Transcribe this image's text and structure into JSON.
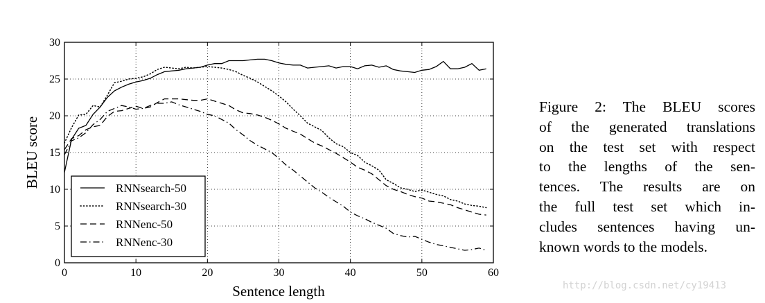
{
  "chart_data": {
    "type": "line",
    "xlabel": "Sentence length",
    "ylabel": "BLEU score",
    "xlim": [
      0,
      60
    ],
    "ylim": [
      0,
      30
    ],
    "xticks": [
      "0",
      "10",
      "20",
      "30",
      "40",
      "50",
      "60"
    ],
    "yticks": [
      "0",
      "5",
      "10",
      "15",
      "20",
      "25",
      "30"
    ],
    "grid": "dotted",
    "legend_position": "bottom-left",
    "series": [
      {
        "name": "RNNsearch-50",
        "style": "solid",
        "x": [
          0,
          1,
          2,
          3,
          4,
          5,
          6,
          7,
          8,
          9,
          10,
          11,
          12,
          13,
          14,
          15,
          16,
          17,
          18,
          19,
          20,
          21,
          22,
          23,
          24,
          25,
          26,
          27,
          28,
          29,
          30,
          31,
          32,
          33,
          34,
          35,
          36,
          37,
          38,
          39,
          40,
          41,
          42,
          43,
          44,
          45,
          46,
          47,
          48,
          49,
          50,
          51,
          52,
          53,
          54,
          55,
          56,
          57,
          58,
          59
        ],
        "y": [
          12.3,
          16.8,
          18.3,
          18.7,
          20.2,
          21.2,
          22.5,
          23.4,
          23.9,
          24.3,
          24.6,
          24.8,
          25.1,
          25.6,
          26.0,
          26.1,
          26.2,
          26.4,
          26.5,
          26.6,
          26.9,
          27.1,
          27.1,
          27.5,
          27.5,
          27.5,
          27.6,
          27.7,
          27.7,
          27.5,
          27.2,
          27.0,
          26.9,
          26.9,
          26.5,
          26.6,
          26.7,
          26.8,
          26.5,
          26.7,
          26.7,
          26.4,
          26.8,
          26.9,
          26.6,
          26.8,
          26.3,
          26.1,
          26.0,
          25.9,
          26.2,
          26.3,
          26.7,
          27.4,
          26.4,
          26.4,
          26.6,
          27.1,
          26.2,
          26.4
        ]
      },
      {
        "name": "RNNsearch-30",
        "style": "dotted",
        "x": [
          0,
          1,
          2,
          3,
          4,
          5,
          6,
          7,
          8,
          9,
          10,
          11,
          12,
          13,
          14,
          15,
          16,
          17,
          18,
          19,
          20,
          21,
          22,
          23,
          24,
          25,
          26,
          27,
          28,
          29,
          30,
          31,
          32,
          33,
          34,
          35,
          36,
          37,
          38,
          39,
          40,
          41,
          42,
          43,
          44,
          45,
          46,
          47,
          48,
          49,
          50,
          51,
          52,
          53,
          54,
          55,
          56,
          57,
          58,
          59
        ],
        "y": [
          16.3,
          18.4,
          20.1,
          20.2,
          21.4,
          21.2,
          22.8,
          24.5,
          24.7,
          25.0,
          25.1,
          25.3,
          25.7,
          26.3,
          26.6,
          26.5,
          26.4,
          26.6,
          26.5,
          26.6,
          26.7,
          26.6,
          26.5,
          26.3,
          26.0,
          25.5,
          25.1,
          24.6,
          24.0,
          23.4,
          22.7,
          21.9,
          20.9,
          20.0,
          19.0,
          18.5,
          18.0,
          17.0,
          16.2,
          15.8,
          15.0,
          14.6,
          13.7,
          13.2,
          12.6,
          11.3,
          10.8,
          10.2,
          10.0,
          9.7,
          9.9,
          9.6,
          9.3,
          9.1,
          8.6,
          8.4,
          8.0,
          7.8,
          7.7,
          7.5
        ]
      },
      {
        "name": "RNNenc-50",
        "style": "dashed",
        "x": [
          0,
          1,
          2,
          3,
          4,
          5,
          6,
          7,
          8,
          9,
          10,
          11,
          12,
          13,
          14,
          15,
          16,
          17,
          18,
          19,
          20,
          21,
          22,
          23,
          24,
          25,
          26,
          27,
          28,
          29,
          30,
          31,
          32,
          33,
          34,
          35,
          36,
          37,
          38,
          39,
          40,
          41,
          42,
          43,
          44,
          45,
          46,
          47,
          48,
          49,
          50,
          51,
          52,
          53,
          54,
          55,
          56,
          57,
          58,
          59
        ],
        "y": [
          15.4,
          16.9,
          17.3,
          18.1,
          18.5,
          18.7,
          19.9,
          20.6,
          20.7,
          21.0,
          21.3,
          21.0,
          21.2,
          21.8,
          22.3,
          22.3,
          22.3,
          22.2,
          22.1,
          22.1,
          22.3,
          22.0,
          21.7,
          21.4,
          20.8,
          20.4,
          20.3,
          20.1,
          19.8,
          19.4,
          18.9,
          18.3,
          17.9,
          17.5,
          16.9,
          16.3,
          15.9,
          15.4,
          14.9,
          14.3,
          13.7,
          13.0,
          12.6,
          12.1,
          11.3,
          10.5,
          10.0,
          9.7,
          9.3,
          9.0,
          8.8,
          8.4,
          8.3,
          8.1,
          7.9,
          7.5,
          7.2,
          6.9,
          6.6,
          6.5
        ]
      },
      {
        "name": "RNNenc-30",
        "style": "dashdot",
        "x": [
          0,
          1,
          2,
          3,
          4,
          5,
          6,
          7,
          8,
          9,
          10,
          11,
          12,
          13,
          14,
          15,
          16,
          17,
          18,
          19,
          20,
          21,
          22,
          23,
          24,
          25,
          26,
          27,
          28,
          29,
          30,
          31,
          32,
          33,
          34,
          35,
          36,
          37,
          38,
          39,
          40,
          41,
          42,
          43,
          44,
          45,
          46,
          47,
          48,
          49,
          50,
          51,
          52,
          53,
          54,
          55,
          56,
          57,
          58,
          59
        ],
        "y": [
          14.7,
          16.6,
          17.0,
          17.7,
          18.8,
          19.5,
          20.6,
          21.0,
          21.4,
          21.2,
          20.9,
          21.0,
          21.4,
          21.7,
          21.7,
          21.9,
          21.5,
          21.2,
          20.9,
          20.6,
          20.2,
          20.0,
          19.5,
          19.0,
          18.1,
          17.4,
          16.6,
          16.0,
          15.5,
          15.0,
          14.2,
          13.3,
          12.6,
          11.8,
          11.0,
          10.2,
          9.6,
          8.9,
          8.3,
          7.7,
          6.9,
          6.4,
          6.0,
          5.5,
          5.1,
          4.7,
          4.0,
          3.7,
          3.5,
          3.6,
          3.2,
          2.8,
          2.5,
          2.3,
          2.1,
          1.9,
          1.7,
          1.8,
          2.0,
          1.7
        ]
      }
    ]
  },
  "caption": {
    "lines": [
      "Figure 2:  The BLEU scores",
      "of the generated translations",
      "on the test set with respect",
      "to the lengths of the sen-",
      "tences.  The results are on",
      "the full test set which in-",
      "cludes sentences having un-",
      "known words to the models."
    ]
  },
  "watermark": "http://blog.csdn.net/cy19413"
}
